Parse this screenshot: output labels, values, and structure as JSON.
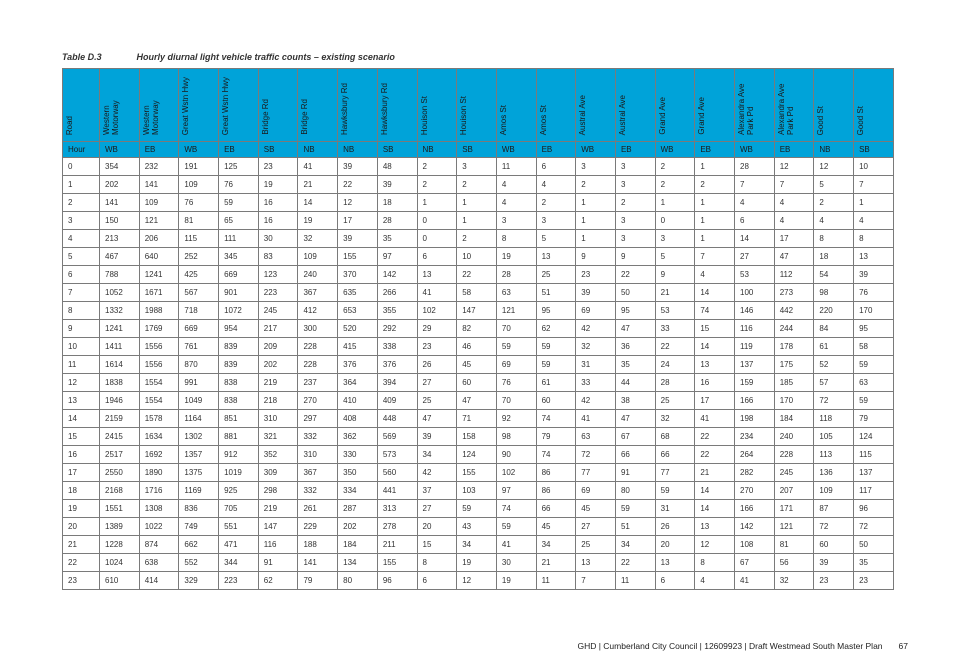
{
  "caption": {
    "table_number": "Table D.3",
    "title": "Hourly diurnal light vehicle traffic counts – existing scenario"
  },
  "table": {
    "road_label": "Road",
    "hour_label": "Hour",
    "roads": [
      "Western Motorway",
      "Western Motorway",
      "Great Wstn Hwy",
      "Great Wstn Hwy",
      "Bridge Rd",
      "Bridge Rd",
      "Hawksbury Rd",
      "Hawksbury Rd",
      "Houison St",
      "Houison St",
      "Amos St",
      "Amos St",
      "Austral Ave",
      "Austral Ave",
      "Grand Ave",
      "Grand Ave",
      "Alexandra Ave Park Pd",
      "Alexandra Ave Park Pd",
      "Good St",
      "Good St"
    ],
    "directions": [
      "WB",
      "EB",
      "WB",
      "EB",
      "SB",
      "NB",
      "NB",
      "SB",
      "NB",
      "SB",
      "WB",
      "EB",
      "WB",
      "EB",
      "WB",
      "EB",
      "WB",
      "EB",
      "NB",
      "SB"
    ],
    "rows": [
      [
        "0",
        "354",
        "232",
        "191",
        "125",
        "23",
        "41",
        "39",
        "48",
        "2",
        "3",
        "11",
        "6",
        "3",
        "3",
        "2",
        "1",
        "28",
        "12",
        "12",
        "10"
      ],
      [
        "1",
        "202",
        "141",
        "109",
        "76",
        "19",
        "21",
        "22",
        "39",
        "2",
        "2",
        "4",
        "4",
        "2",
        "3",
        "2",
        "2",
        "7",
        "7",
        "5",
        "7"
      ],
      [
        "2",
        "141",
        "109",
        "76",
        "59",
        "16",
        "14",
        "12",
        "18",
        "1",
        "1",
        "4",
        "2",
        "1",
        "2",
        "1",
        "1",
        "4",
        "4",
        "2",
        "1"
      ],
      [
        "3",
        "150",
        "121",
        "81",
        "65",
        "16",
        "19",
        "17",
        "28",
        "0",
        "1",
        "3",
        "3",
        "1",
        "3",
        "0",
        "1",
        "6",
        "4",
        "4",
        "4"
      ],
      [
        "4",
        "213",
        "206",
        "115",
        "111",
        "30",
        "32",
        "39",
        "35",
        "0",
        "2",
        "8",
        "5",
        "1",
        "3",
        "3",
        "1",
        "14",
        "17",
        "8",
        "8"
      ],
      [
        "5",
        "467",
        "640",
        "252",
        "345",
        "83",
        "109",
        "155",
        "97",
        "6",
        "10",
        "19",
        "13",
        "9",
        "9",
        "5",
        "7",
        "27",
        "47",
        "18",
        "13"
      ],
      [
        "6",
        "788",
        "1241",
        "425",
        "669",
        "123",
        "240",
        "370",
        "142",
        "13",
        "22",
        "28",
        "25",
        "23",
        "22",
        "9",
        "4",
        "53",
        "112",
        "54",
        "39"
      ],
      [
        "7",
        "1052",
        "1671",
        "567",
        "901",
        "223",
        "367",
        "635",
        "266",
        "41",
        "58",
        "63",
        "51",
        "39",
        "50",
        "21",
        "14",
        "100",
        "273",
        "98",
        "76"
      ],
      [
        "8",
        "1332",
        "1988",
        "718",
        "1072",
        "245",
        "412",
        "653",
        "355",
        "102",
        "147",
        "121",
        "95",
        "69",
        "95",
        "53",
        "74",
        "146",
        "442",
        "220",
        "170"
      ],
      [
        "9",
        "1241",
        "1769",
        "669",
        "954",
        "217",
        "300",
        "520",
        "292",
        "29",
        "82",
        "70",
        "62",
        "42",
        "47",
        "33",
        "15",
        "116",
        "244",
        "84",
        "95"
      ],
      [
        "10",
        "1411",
        "1556",
        "761",
        "839",
        "209",
        "228",
        "415",
        "338",
        "23",
        "46",
        "59",
        "59",
        "32",
        "36",
        "22",
        "14",
        "119",
        "178",
        "61",
        "58"
      ],
      [
        "11",
        "1614",
        "1556",
        "870",
        "839",
        "202",
        "228",
        "376",
        "376",
        "26",
        "45",
        "69",
        "59",
        "31",
        "35",
        "24",
        "13",
        "137",
        "175",
        "52",
        "59"
      ],
      [
        "12",
        "1838",
        "1554",
        "991",
        "838",
        "219",
        "237",
        "364",
        "394",
        "27",
        "60",
        "76",
        "61",
        "33",
        "44",
        "28",
        "16",
        "159",
        "185",
        "57",
        "63"
      ],
      [
        "13",
        "1946",
        "1554",
        "1049",
        "838",
        "218",
        "270",
        "410",
        "409",
        "25",
        "47",
        "70",
        "60",
        "42",
        "38",
        "25",
        "17",
        "166",
        "170",
        "72",
        "59"
      ],
      [
        "14",
        "2159",
        "1578",
        "1164",
        "851",
        "310",
        "297",
        "408",
        "448",
        "47",
        "71",
        "92",
        "74",
        "41",
        "47",
        "32",
        "41",
        "198",
        "184",
        "118",
        "79"
      ],
      [
        "15",
        "2415",
        "1634",
        "1302",
        "881",
        "321",
        "332",
        "362",
        "569",
        "39",
        "158",
        "98",
        "79",
        "63",
        "67",
        "68",
        "22",
        "234",
        "240",
        "105",
        "124"
      ],
      [
        "16",
        "2517",
        "1692",
        "1357",
        "912",
        "352",
        "310",
        "330",
        "573",
        "34",
        "124",
        "90",
        "74",
        "72",
        "66",
        "66",
        "22",
        "264",
        "228",
        "113",
        "115"
      ],
      [
        "17",
        "2550",
        "1890",
        "1375",
        "1019",
        "309",
        "367",
        "350",
        "560",
        "42",
        "155",
        "102",
        "86",
        "77",
        "91",
        "77",
        "21",
        "282",
        "245",
        "136",
        "137"
      ],
      [
        "18",
        "2168",
        "1716",
        "1169",
        "925",
        "298",
        "332",
        "334",
        "441",
        "37",
        "103",
        "97",
        "86",
        "69",
        "80",
        "59",
        "14",
        "270",
        "207",
        "109",
        "117"
      ],
      [
        "19",
        "1551",
        "1308",
        "836",
        "705",
        "219",
        "261",
        "287",
        "313",
        "27",
        "59",
        "74",
        "66",
        "45",
        "59",
        "31",
        "14",
        "166",
        "171",
        "87",
        "96"
      ],
      [
        "20",
        "1389",
        "1022",
        "749",
        "551",
        "147",
        "229",
        "202",
        "278",
        "20",
        "43",
        "59",
        "45",
        "27",
        "51",
        "26",
        "13",
        "142",
        "121",
        "72",
        "72"
      ],
      [
        "21",
        "1228",
        "874",
        "662",
        "471",
        "116",
        "188",
        "184",
        "211",
        "15",
        "34",
        "41",
        "34",
        "25",
        "34",
        "20",
        "12",
        "108",
        "81",
        "60",
        "50"
      ],
      [
        "22",
        "1024",
        "638",
        "552",
        "344",
        "91",
        "141",
        "134",
        "155",
        "8",
        "19",
        "30",
        "21",
        "13",
        "22",
        "13",
        "8",
        "67",
        "56",
        "39",
        "35"
      ],
      [
        "23",
        "610",
        "414",
        "329",
        "223",
        "62",
        "79",
        "80",
        "96",
        "6",
        "12",
        "19",
        "11",
        "7",
        "11",
        "6",
        "4",
        "41",
        "32",
        "23",
        "23"
      ]
    ]
  },
  "footer": {
    "text": "GHD | Cumberland City Council | 12609923 | Draft Westmead South Master Plan",
    "page": "67"
  }
}
